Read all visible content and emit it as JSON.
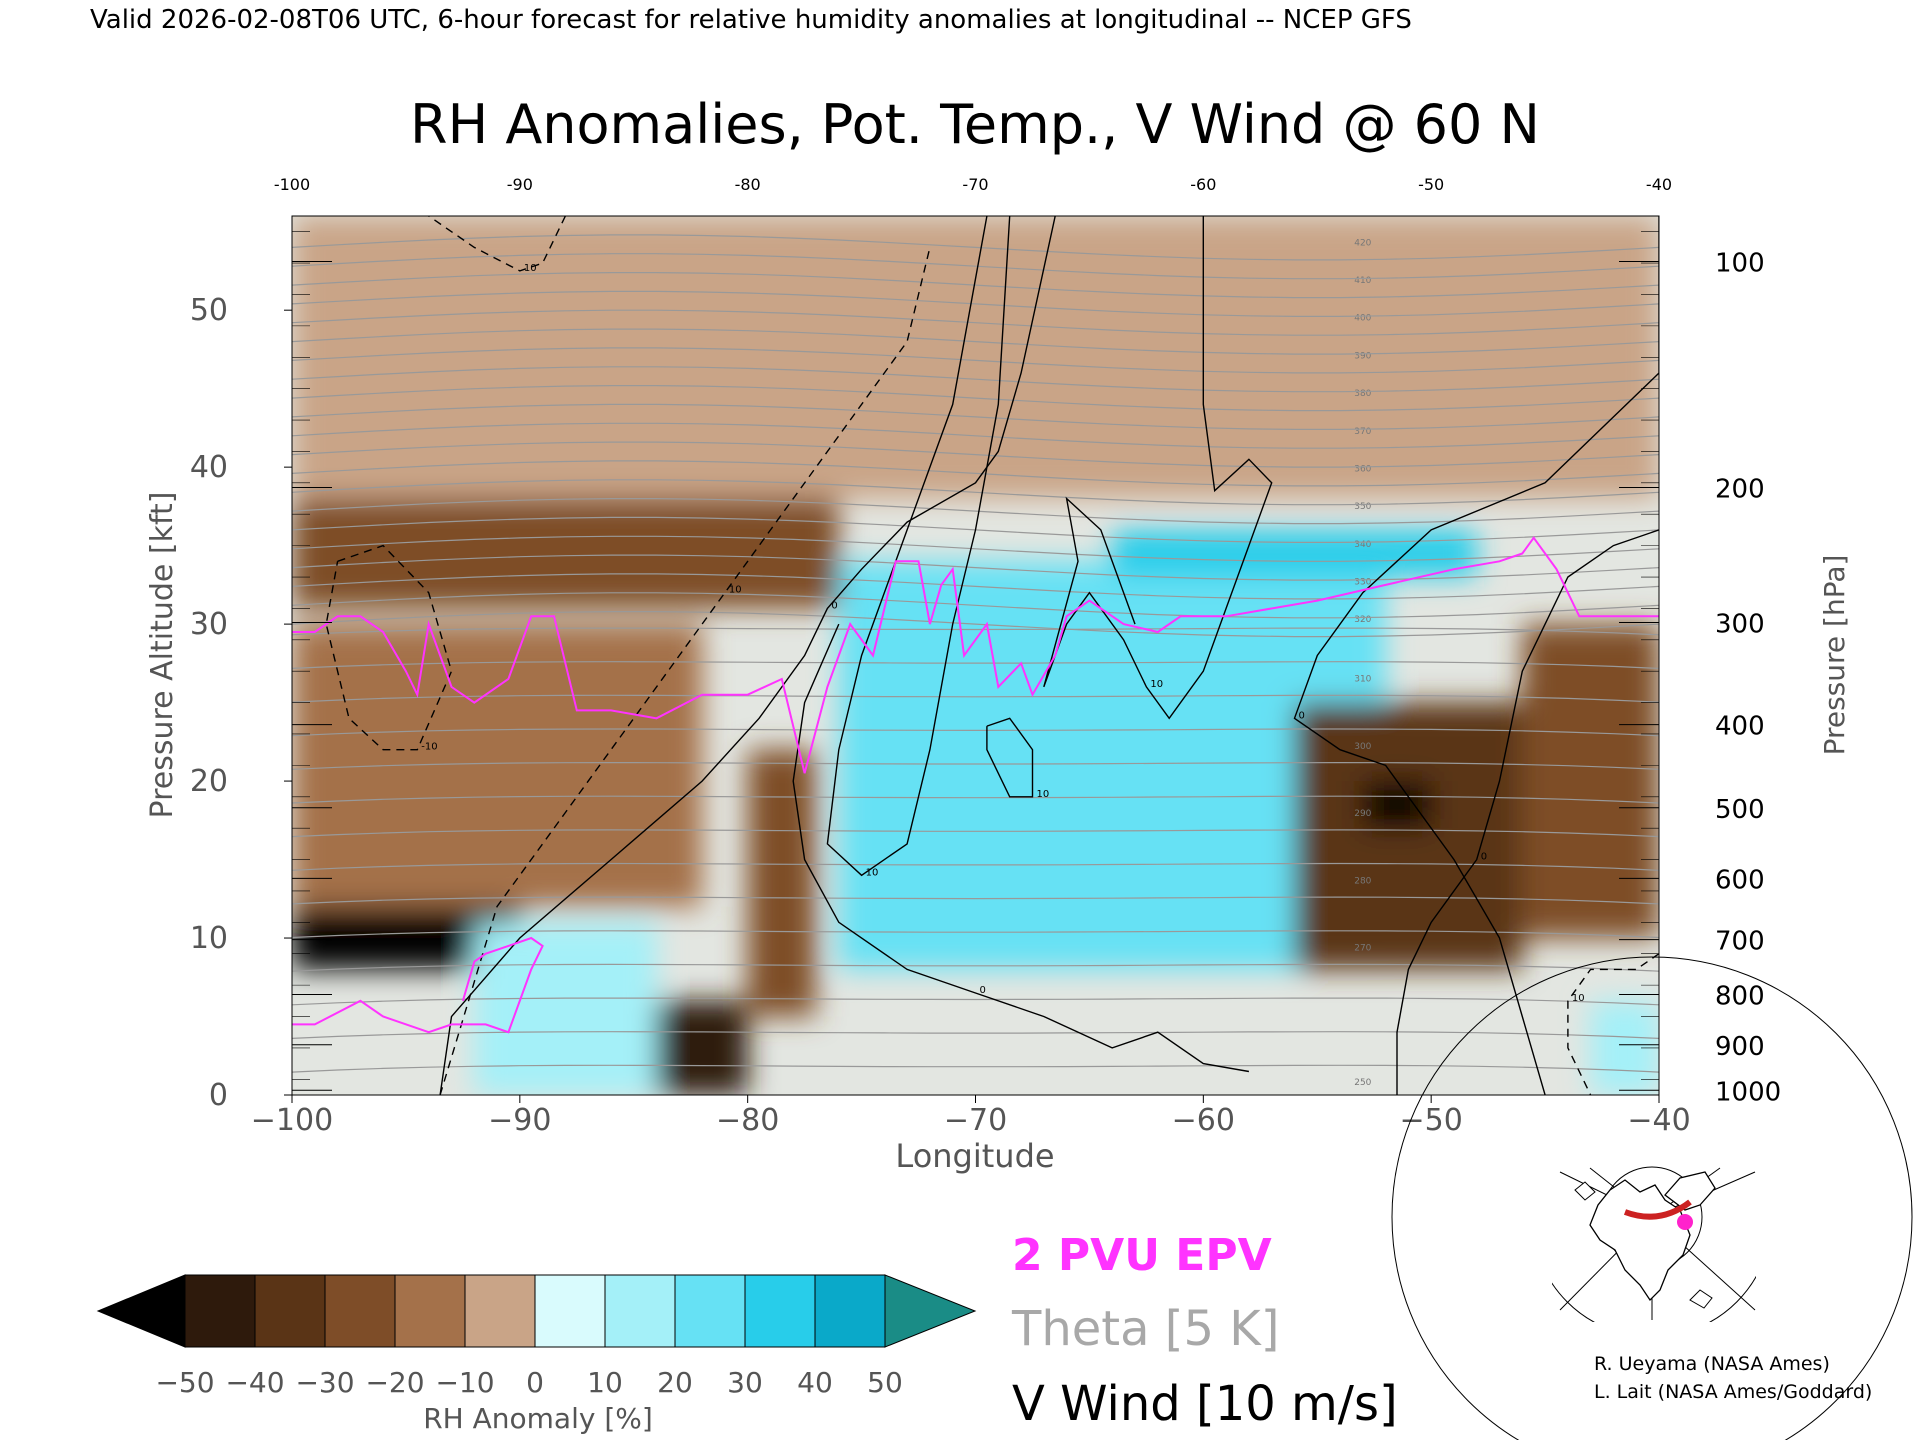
{
  "header": {
    "valid_line": "Valid 2026-02-08T06 UTC, 6-hour forecast for relative humidity anomalies at longitudinal -- NCEP GFS",
    "title": "RH Anomalies, Pot. Temp., V Wind @ 60 N"
  },
  "legend": {
    "epv": "2 PVU EPV",
    "theta": "Theta [5 K]",
    "vwind": "V Wind [10 m/s]"
  },
  "colorbar": {
    "label": "RH Anomaly [%]",
    "ticks": [
      "−50",
      "−40",
      "−30",
      "−20",
      "−10",
      "0",
      "10",
      "20",
      "30",
      "40",
      "50"
    ],
    "colors": [
      "#2e1a0c",
      "#5a3416",
      "#7e4d28",
      "#a4714a",
      "#c9a487",
      "#ead4c6",
      "#d9fbfd",
      "#a4f0f8",
      "#66e1f4",
      "#28cdea",
      "#0aa9c9",
      "#0a7f9a"
    ],
    "under_color": "#000000",
    "over_color": "#1a8c86"
  },
  "credits": {
    "line1": "R. Ueyama (NASA Ames)",
    "line2": "L. Lait (NASA Ames/Goddard)"
  },
  "colors": {
    "epv_line": "#ff33ff",
    "theta_line": "#999999",
    "wind_line": "#000000",
    "map_track": "#cc2222",
    "map_dot": "#ff22cc"
  },
  "chart_data": {
    "type": "heatmap",
    "title": "RH Anomalies, Pot. Temp., V Wind @ 60 N",
    "xlabel": "Longitude",
    "ylabel": "Pressure Altitude [kft]",
    "y2label": "Pressure [hPa]",
    "xlim": [
      -100,
      -40
    ],
    "ylim": [
      0,
      56
    ],
    "x_ticks": [
      "−100",
      "−90",
      "−80",
      "−70",
      "−60",
      "−50",
      "−40"
    ],
    "x_top_ticks": [
      "-100",
      "-90",
      "-80",
      "-70",
      "-60",
      "-50",
      "-40"
    ],
    "y_ticks": [
      "0",
      "10",
      "20",
      "30",
      "40",
      "50"
    ],
    "pressure_levels": [
      {
        "label": "100",
        "kft": 53.1
      },
      {
        "label": "200",
        "kft": 38.7
      },
      {
        "label": "300",
        "kft": 30.1
      },
      {
        "label": "400",
        "kft": 23.6
      },
      {
        "label": "500",
        "kft": 18.3
      },
      {
        "label": "600",
        "kft": 13.8
      },
      {
        "label": "700",
        "kft": 9.9
      },
      {
        "label": "800",
        "kft": 6.4
      },
      {
        "label": "900",
        "kft": 3.2
      },
      {
        "label": "1000",
        "kft": 0.3
      }
    ],
    "rh_anomaly_features": [
      {
        "lon_min": -100,
        "lon_max": -76,
        "alt_min": 31,
        "alt_max": 38,
        "rh": -30
      },
      {
        "lon_min": -100,
        "lon_max": -90,
        "alt_min": 8,
        "alt_max": 12,
        "rh": -55
      },
      {
        "lon_min": -100,
        "lon_max": -82,
        "alt_min": 12,
        "alt_max": 30,
        "rh": -15
      },
      {
        "lon_min": -92,
        "lon_max": -84,
        "alt_min": 0,
        "alt_max": 11,
        "rh": 20
      },
      {
        "lon_min": -84,
        "lon_max": -80,
        "alt_min": 0,
        "alt_max": 6,
        "rh": -45
      },
      {
        "lon_min": -80,
        "lon_max": -77,
        "alt_min": 5,
        "alt_max": 22,
        "rh": -30
      },
      {
        "lon_min": -76,
        "lon_max": -52,
        "alt_min": 8,
        "alt_max": 34,
        "rh": 35
      },
      {
        "lon_min": -64,
        "lon_max": -48,
        "alt_min": 33,
        "alt_max": 36,
        "rh": 40
      },
      {
        "lon_min": -56,
        "lon_max": -46,
        "alt_min": 8,
        "alt_max": 25,
        "rh": -35
      },
      {
        "lon_min": -53,
        "lon_max": -50,
        "alt_min": 17,
        "alt_max": 20,
        "rh": -55
      },
      {
        "lon_min": -46,
        "lon_max": -40,
        "alt_min": 10,
        "alt_max": 30,
        "rh": -25
      },
      {
        "lon_min": -43,
        "lon_max": -40,
        "alt_min": 0,
        "alt_max": 6,
        "rh": 25
      },
      {
        "lon_min": -100,
        "lon_max": -40,
        "alt_min": 38,
        "alt_max": 56,
        "rh": -5
      }
    ],
    "theta_isentropes": [
      {
        "theta": 250,
        "labeled": true
      },
      {
        "theta": 255,
        "labeled": false
      },
      {
        "theta": 260,
        "labeled": false
      },
      {
        "theta": 265,
        "labeled": false
      },
      {
        "theta": 270,
        "labeled": true
      },
      {
        "theta": 275,
        "labeled": false
      },
      {
        "theta": 280,
        "labeled": true
      },
      {
        "theta": 285,
        "labeled": false
      },
      {
        "theta": 290,
        "labeled": true
      },
      {
        "theta": 295,
        "labeled": false
      },
      {
        "theta": 300,
        "labeled": true
      },
      {
        "theta": 305,
        "labeled": false
      },
      {
        "theta": 310,
        "labeled": true
      },
      {
        "theta": 315,
        "labeled": false
      },
      {
        "theta": 320,
        "labeled": true
      },
      {
        "theta": 325,
        "labeled": false
      },
      {
        "theta": 330,
        "labeled": true
      },
      {
        "theta": 335,
        "labeled": false
      },
      {
        "theta": 340,
        "labeled": true
      },
      {
        "theta": 345,
        "labeled": false
      },
      {
        "theta": 350,
        "labeled": true
      },
      {
        "theta": 355,
        "labeled": false
      },
      {
        "theta": 360,
        "labeled": true
      },
      {
        "theta": 365,
        "labeled": false
      },
      {
        "theta": 370,
        "labeled": true
      },
      {
        "theta": 375,
        "labeled": false
      },
      {
        "theta": 380,
        "labeled": true
      },
      {
        "theta": 385,
        "labeled": false
      },
      {
        "theta": 390,
        "labeled": true
      },
      {
        "theta": 395,
        "labeled": false
      },
      {
        "theta": 400,
        "labeled": true
      },
      {
        "theta": 405,
        "labeled": false
      },
      {
        "theta": 410,
        "labeled": true
      },
      {
        "theta": 415,
        "labeled": false
      },
      {
        "theta": 420,
        "labeled": true
      }
    ],
    "epv_2pvu": [
      [
        -100,
        29.5
      ],
      [
        -99,
        29.5
      ],
      [
        -98,
        30.5
      ],
      [
        -97,
        30.5
      ],
      [
        -96,
        29.5
      ],
      [
        -95,
        27
      ],
      [
        -94.5,
        25.5
      ],
      [
        -94,
        30
      ],
      [
        -93,
        26
      ],
      [
        -92,
        25
      ],
      [
        -90.5,
        26.5
      ],
      [
        -89.5,
        30.5
      ],
      [
        -88.5,
        30.5
      ],
      [
        -87.5,
        24.5
      ],
      [
        -86,
        24.5
      ],
      [
        -84,
        24
      ],
      [
        -82,
        25.5
      ],
      [
        -80,
        25.5
      ],
      [
        -78.5,
        26.5
      ],
      [
        -77.5,
        20.5
      ],
      [
        -76.5,
        26
      ],
      [
        -75.5,
        30
      ],
      [
        -74.5,
        28
      ],
      [
        -74,
        31
      ],
      [
        -73.5,
        34
      ],
      [
        -72.5,
        34
      ],
      [
        -72,
        30
      ],
      [
        -71.5,
        32.5
      ],
      [
        -71,
        33.5
      ],
      [
        -70.5,
        28
      ],
      [
        -69.5,
        30
      ],
      [
        -69,
        26
      ],
      [
        -68,
        27.5
      ],
      [
        -67.5,
        25.5
      ],
      [
        -66.5,
        28
      ],
      [
        -66,
        30.5
      ],
      [
        -65,
        31.5
      ],
      [
        -63.5,
        30
      ],
      [
        -62,
        29.5
      ],
      [
        -61,
        30.5
      ],
      [
        -59,
        30.5
      ],
      [
        -55,
        31.5
      ],
      [
        -52,
        32.5
      ],
      [
        -49,
        33.5
      ],
      [
        -47,
        34
      ],
      [
        -46,
        34.5
      ],
      [
        -45.5,
        35.5
      ],
      [
        -44.5,
        33.5
      ],
      [
        -43.5,
        30.5
      ],
      [
        -40,
        30.5
      ]
    ],
    "epv_2pvu_lower": [
      [
        -100,
        4.5
      ],
      [
        -99,
        4.5
      ],
      [
        -97,
        6
      ],
      [
        -96,
        5
      ],
      [
        -94,
        4
      ],
      [
        -93,
        4.5
      ],
      [
        -91.5,
        4.5
      ],
      [
        -90.5,
        4
      ],
      [
        -89.5,
        8
      ],
      [
        -89,
        9.5
      ],
      [
        -89.5,
        10
      ],
      [
        -90.5,
        9.5
      ],
      [
        -91.5,
        9
      ],
      [
        -92,
        8.5
      ],
      [
        -92.5,
        6
      ]
    ],
    "v_wind_contours": [
      {
        "label": "0",
        "style": "solid",
        "points": [
          [
            -93.5,
            0
          ],
          [
            -93,
            5
          ],
          [
            -90,
            10
          ],
          [
            -86,
            15
          ],
          [
            -82,
            20
          ],
          [
            -79.5,
            24
          ],
          [
            -77.5,
            28
          ],
          [
            -76.5,
            31
          ],
          [
            -75,
            33.5
          ],
          [
            -73,
            36.5
          ],
          [
            -70,
            39
          ],
          [
            -69,
            41
          ],
          [
            -68,
            46
          ],
          [
            -66.5,
            56
          ]
        ]
      },
      {
        "label": "0",
        "style": "solid",
        "points": [
          [
            -76,
            30
          ],
          [
            -77.5,
            25
          ],
          [
            -78,
            20
          ],
          [
            -77.5,
            15
          ],
          [
            -76,
            11
          ],
          [
            -73,
            8
          ],
          [
            -70,
            6.5
          ],
          [
            -67,
            5
          ],
          [
            -64,
            3
          ],
          [
            -62,
            4
          ],
          [
            -60,
            2
          ],
          [
            -58,
            1.5
          ]
        ]
      },
      {
        "label": "10",
        "style": "solid",
        "points": [
          [
            -69.5,
            56
          ],
          [
            -71,
            44
          ],
          [
            -73,
            36
          ],
          [
            -75,
            28
          ],
          [
            -76,
            22
          ],
          [
            -76.5,
            16
          ],
          [
            -75,
            14
          ],
          [
            -73,
            16
          ],
          [
            -72,
            22
          ],
          [
            -71,
            30
          ],
          [
            -70,
            36
          ],
          [
            -69,
            44
          ],
          [
            -68.5,
            56
          ]
        ]
      },
      {
        "label": "10",
        "style": "solid",
        "points": [
          [
            -60,
            56
          ],
          [
            -60,
            44
          ],
          [
            -59.5,
            38.5
          ],
          [
            -58,
            40.5
          ],
          [
            -57,
            39
          ],
          [
            -58,
            35
          ],
          [
            -59,
            31
          ],
          [
            -60,
            27
          ],
          [
            -61.5,
            24
          ],
          [
            -62.5,
            26
          ],
          [
            -63.5,
            29
          ],
          [
            -65,
            32
          ],
          [
            -66,
            30
          ],
          [
            -67,
            26
          ],
          [
            -65.5,
            34
          ],
          [
            -66,
            38
          ],
          [
            -64.5,
            36
          ],
          [
            -63,
            30
          ]
        ]
      },
      {
        "label": "10",
        "style": "solid",
        "points": [
          [
            -69.5,
            23.5
          ],
          [
            -68.5,
            24
          ],
          [
            -67.5,
            22
          ],
          [
            -67.5,
            19
          ],
          [
            -68.5,
            19
          ],
          [
            -69.5,
            22
          ],
          [
            -69.5,
            23.5
          ]
        ]
      },
      {
        "label": "0",
        "style": "solid",
        "points": [
          [
            -40,
            56
          ],
          [
            -40,
            46
          ],
          [
            -45,
            39
          ],
          [
            -50,
            36
          ],
          [
            -53,
            32
          ],
          [
            -55,
            28
          ],
          [
            -56,
            24
          ],
          [
            -54,
            22
          ],
          [
            -52,
            21
          ],
          [
            -49,
            15
          ],
          [
            -47,
            10
          ],
          [
            -46,
            5
          ],
          [
            -45,
            0
          ]
        ]
      },
      {
        "label": "0",
        "style": "solid",
        "points": [
          [
            -40,
            36
          ],
          [
            -42,
            35
          ],
          [
            -44,
            33
          ],
          [
            -46,
            27
          ],
          [
            -47,
            20
          ],
          [
            -48,
            15
          ],
          [
            -50,
            11
          ],
          [
            -51,
            8
          ],
          [
            -51.5,
            4
          ],
          [
            -51.5,
            0
          ]
        ]
      },
      {
        "label": "10",
        "style": "dashed",
        "points": [
          [
            -88,
            56
          ],
          [
            -89,
            53
          ],
          [
            -90,
            52.5
          ],
          [
            -92,
            54
          ],
          [
            -94,
            56
          ]
        ]
      },
      {
        "label": "10",
        "style": "dashed",
        "points": [
          [
            -93.5,
            0
          ],
          [
            -91,
            12
          ],
          [
            -88,
            18
          ],
          [
            -85,
            24
          ],
          [
            -83,
            28
          ],
          [
            -81,
            32
          ],
          [
            -79,
            36
          ],
          [
            -76,
            42
          ],
          [
            -73,
            48
          ],
          [
            -72,
            54
          ]
        ]
      },
      {
        "label": "-10",
        "style": "dashed",
        "points": [
          [
            -98,
            34
          ],
          [
            -96,
            35
          ],
          [
            -94,
            32
          ],
          [
            -93,
            27
          ],
          [
            -94.5,
            22
          ],
          [
            -96,
            22
          ],
          [
            -97.5,
            24
          ],
          [
            -98.5,
            30
          ],
          [
            -98,
            34
          ]
        ]
      },
      {
        "label": "10",
        "style": "dashed",
        "points": [
          [
            -40,
            9
          ],
          [
            -41,
            8
          ],
          [
            -43,
            8
          ],
          [
            -44,
            6
          ],
          [
            -44,
            3
          ],
          [
            -43,
            0
          ]
        ]
      }
    ]
  }
}
